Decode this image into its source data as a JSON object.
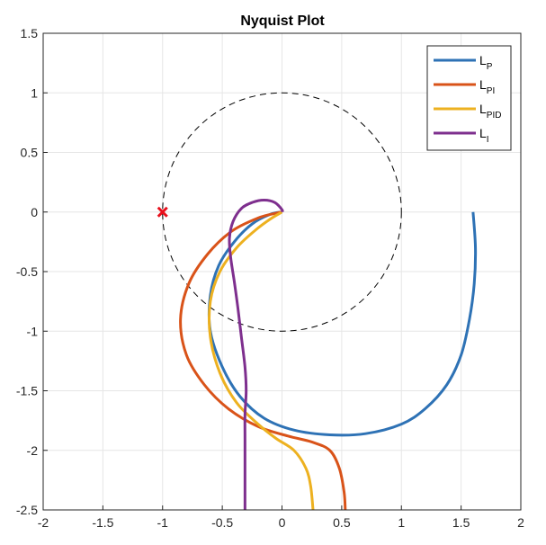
{
  "chart_data": {
    "type": "line",
    "title": "Nyquist Plot",
    "xlabel": "",
    "ylabel": "",
    "xlim": [
      -2,
      2
    ],
    "ylim": [
      -2.5,
      1.5
    ],
    "grid": true,
    "legend_position": "top-right",
    "x_ticks": [
      "-2",
      "-1.5",
      "-1",
      "-0.5",
      "0",
      "0.5",
      "1",
      "1.5",
      "2"
    ],
    "y_ticks": [
      "1.5",
      "1",
      "0.5",
      "0",
      "-0.5",
      "-1",
      "-1.5",
      "-2",
      "-2.5"
    ],
    "critical_point": {
      "x": -1,
      "y": 0,
      "marker": "x",
      "color": "#e8101c"
    },
    "unit_circle": {
      "center": [
        0,
        0
      ],
      "radius": 1,
      "style": "dashed",
      "color": "#000000"
    },
    "series": [
      {
        "name": "L",
        "subscript": "P",
        "color": "#2e72b5",
        "points": [
          [
            1.6,
            0
          ],
          [
            1.62,
            -0.3
          ],
          [
            1.61,
            -0.6
          ],
          [
            1.57,
            -0.9
          ],
          [
            1.5,
            -1.2
          ],
          [
            1.38,
            -1.45
          ],
          [
            1.2,
            -1.65
          ],
          [
            1.0,
            -1.78
          ],
          [
            0.7,
            -1.86
          ],
          [
            0.4,
            -1.87
          ],
          [
            0.1,
            -1.83
          ],
          [
            -0.15,
            -1.73
          ],
          [
            -0.35,
            -1.55
          ],
          [
            -0.5,
            -1.3
          ],
          [
            -0.6,
            -1.0
          ],
          [
            -0.6,
            -0.7
          ],
          [
            -0.53,
            -0.45
          ],
          [
            -0.4,
            -0.25
          ],
          [
            -0.25,
            -0.1
          ],
          [
            -0.1,
            -0.02
          ],
          [
            0,
            0
          ]
        ]
      },
      {
        "name": "L",
        "subscript": "PI",
        "color": "#d95319",
        "points": [
          [
            0.53,
            -2.5
          ],
          [
            0.52,
            -2.35
          ],
          [
            0.48,
            -2.15
          ],
          [
            0.4,
            -2.0
          ],
          [
            0.25,
            -1.93
          ],
          [
            0.05,
            -1.88
          ],
          [
            -0.2,
            -1.8
          ],
          [
            -0.45,
            -1.65
          ],
          [
            -0.65,
            -1.45
          ],
          [
            -0.8,
            -1.2
          ],
          [
            -0.85,
            -0.9
          ],
          [
            -0.78,
            -0.6
          ],
          [
            -0.62,
            -0.35
          ],
          [
            -0.42,
            -0.16
          ],
          [
            -0.2,
            -0.05
          ],
          [
            -0.05,
            -0.01
          ],
          [
            0,
            0
          ]
        ]
      },
      {
        "name": "L",
        "subscript": "PID",
        "color": "#edb120",
        "points": [
          [
            0.26,
            -2.5
          ],
          [
            0.24,
            -2.3
          ],
          [
            0.2,
            -2.15
          ],
          [
            0.1,
            -2.0
          ],
          [
            -0.05,
            -1.9
          ],
          [
            -0.2,
            -1.78
          ],
          [
            -0.38,
            -1.6
          ],
          [
            -0.52,
            -1.35
          ],
          [
            -0.6,
            -1.05
          ],
          [
            -0.6,
            -0.75
          ],
          [
            -0.52,
            -0.5
          ],
          [
            -0.38,
            -0.3
          ],
          [
            -0.22,
            -0.15
          ],
          [
            -0.1,
            -0.06
          ],
          [
            0,
            0
          ]
        ]
      },
      {
        "name": "L",
        "subscript": "I",
        "color": "#7e2f8e",
        "points": [
          [
            -0.31,
            -2.5
          ],
          [
            -0.31,
            -2.2
          ],
          [
            -0.31,
            -1.9
          ],
          [
            -0.31,
            -1.7
          ],
          [
            -0.3,
            -1.5
          ],
          [
            -0.31,
            -1.3
          ],
          [
            -0.34,
            -1.05
          ],
          [
            -0.37,
            -0.8
          ],
          [
            -0.4,
            -0.58
          ],
          [
            -0.43,
            -0.38
          ],
          [
            -0.44,
            -0.22
          ],
          [
            -0.41,
            -0.08
          ],
          [
            -0.34,
            0.03
          ],
          [
            -0.25,
            0.08
          ],
          [
            -0.15,
            0.1
          ],
          [
            -0.06,
            0.08
          ],
          [
            0,
            0.02
          ],
          [
            0,
            0
          ]
        ]
      }
    ]
  }
}
